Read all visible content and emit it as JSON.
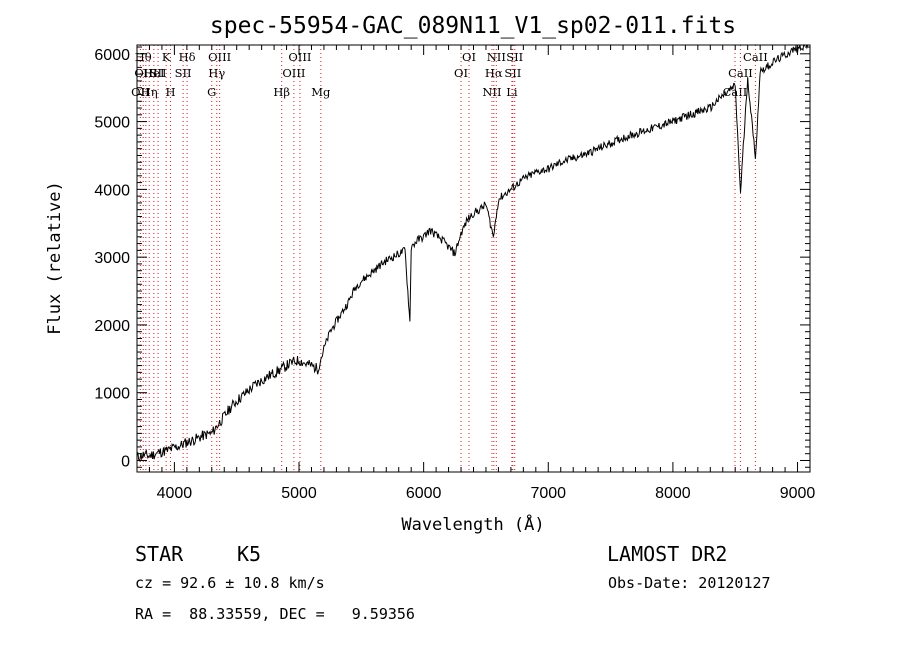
{
  "chart_data": {
    "type": "line",
    "title": "spec-55954-GAC_089N11_V1_sp02-011.fits",
    "xlabel": "Wavelength (Å)",
    "ylabel": "Flux (relative)",
    "xlim": [
      3700,
      9100
    ],
    "ylim": [
      -170,
      6130
    ],
    "xticks": [
      4000,
      5000,
      6000,
      7000,
      8000,
      9000
    ],
    "yticks": [
      0,
      1000,
      2000,
      3000,
      4000,
      5000,
      6000
    ],
    "grid": false,
    "series": [
      {
        "x": [
          3700,
          3750,
          3800,
          3850,
          3900,
          3950,
          4000,
          4050,
          4100,
          4150,
          4200,
          4250,
          4300,
          4350,
          4400,
          4450,
          4500,
          4550,
          4600,
          4650,
          4700,
          4750,
          4800,
          4850,
          4900,
          4950,
          5000,
          5050,
          5100,
          5150,
          5200,
          5250,
          5300,
          5350,
          5400,
          5450,
          5500,
          5550,
          5600,
          5650,
          5700,
          5750,
          5800,
          5850,
          5890,
          5900,
          5950,
          6000,
          6050,
          6100,
          6150,
          6200,
          6250,
          6300,
          6350,
          6400,
          6450,
          6500,
          6560,
          6600,
          6650,
          6700,
          6750,
          6800,
          6850,
          6900,
          6950,
          7000,
          7100,
          7200,
          7300,
          7400,
          7500,
          7600,
          7700,
          7800,
          7900,
          8000,
          8100,
          8200,
          8300,
          8350,
          8400,
          8450,
          8500,
          8542,
          8600,
          8662,
          8700,
          8750,
          8800,
          8850,
          8900,
          8950,
          9000,
          9050,
          9100
        ],
        "values": [
          50,
          80,
          70,
          100,
          130,
          150,
          190,
          220,
          270,
          300,
          340,
          380,
          400,
          530,
          650,
          780,
          880,
          960,
          1040,
          1120,
          1180,
          1240,
          1290,
          1340,
          1400,
          1450,
          1480,
          1430,
          1400,
          1350,
          1650,
          1900,
          2050,
          2200,
          2350,
          2550,
          2650,
          2720,
          2800,
          2880,
          2950,
          3000,
          3050,
          3100,
          2050,
          3150,
          3250,
          3300,
          3400,
          3320,
          3250,
          3150,
          3050,
          3350,
          3550,
          3650,
          3700,
          3780,
          3300,
          3850,
          3930,
          4000,
          4080,
          4150,
          4200,
          4250,
          4280,
          4300,
          4400,
          4460,
          4520,
          4600,
          4680,
          4760,
          4820,
          4880,
          4940,
          5000,
          5080,
          5140,
          5200,
          5300,
          5380,
          5450,
          5530,
          3950,
          5650,
          4450,
          5750,
          5800,
          5870,
          5930,
          5980,
          6040,
          6080,
          6120,
          6150
        ]
      }
    ],
    "lines": [
      {
        "w": 3727,
        "row": 2,
        "label": "OII"
      },
      {
        "w": 3750,
        "row": 0,
        "label": "Hθ"
      },
      {
        "w": 3771,
        "row": 1,
        "label": "OIII"
      },
      {
        "w": 3798,
        "row": 2,
        "label": "Hη"
      },
      {
        "w": 3835,
        "row": 1,
        "label": "HeI"
      },
      {
        "w": 3869,
        "row": 1,
        "label": "SII"
      },
      {
        "w": 3934,
        "row": 0,
        "label": "K"
      },
      {
        "w": 3969,
        "row": 2,
        "label": "H"
      },
      {
        "w": 4102,
        "row": 0,
        "label": "Hδ"
      },
      {
        "w": 4070,
        "row": 1,
        "label": "SII"
      },
      {
        "w": 4300,
        "row": 2,
        "label": "G"
      },
      {
        "w": 4340,
        "row": 1,
        "label": "Hγ"
      },
      {
        "w": 4363,
        "row": 0,
        "label": "OIII"
      },
      {
        "w": 4861,
        "row": 2,
        "label": "Hβ"
      },
      {
        "w": 4959,
        "row": 1,
        "label": "OIII"
      },
      {
        "w": 5007,
        "row": 0,
        "label": "OIII"
      },
      {
        "w": 5175,
        "row": 2,
        "label": "Mg"
      },
      {
        "w": 6300,
        "row": 1,
        "label": "OI"
      },
      {
        "w": 6364,
        "row": 0,
        "label": "OI"
      },
      {
        "w": 6548,
        "row": 2,
        "label": "NII"
      },
      {
        "w": 6563,
        "row": 1,
        "label": "Hα"
      },
      {
        "w": 6583,
        "row": 0,
        "label": "NII"
      },
      {
        "w": 6708,
        "row": 2,
        "label": "Li"
      },
      {
        "w": 6716,
        "row": 1,
        "label": "SII"
      },
      {
        "w": 6731,
        "row": 0,
        "label": "SII"
      },
      {
        "w": 8498,
        "row": 2,
        "label": "CaII"
      },
      {
        "w": 8542,
        "row": 1,
        "label": "CaII"
      },
      {
        "w": 8662,
        "row": 0,
        "label": "CaII"
      }
    ],
    "line_color": "#d02020"
  },
  "info": {
    "class_label": "STAR",
    "subclass": "K5",
    "survey": "LAMOST DR2",
    "cz": "cz = 92.6 ± 10.8 km/s",
    "obs_date": "Obs-Date: 20120127",
    "coords": "RA =  88.33559, DEC =   9.59356"
  }
}
